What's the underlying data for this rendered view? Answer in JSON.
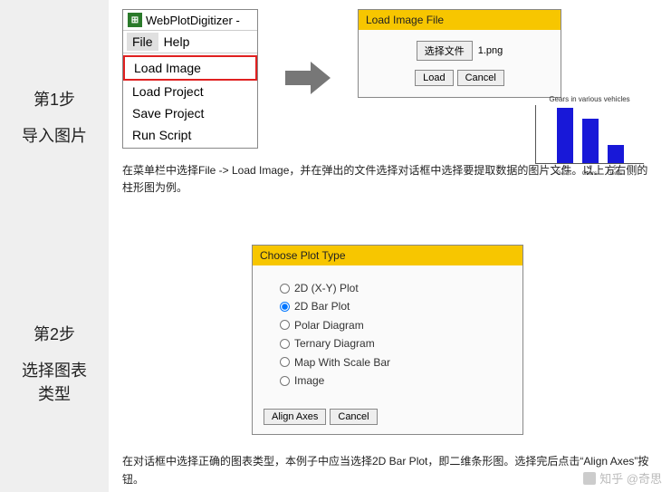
{
  "step1": {
    "num": "第1步",
    "title": "导入图片",
    "window_title": "WebPlotDigitizer -",
    "menu_file": "File",
    "menu_help": "Help",
    "items": [
      "Load Image",
      "Load Project",
      "Save Project",
      "Run Script"
    ],
    "dialog_title": "Load Image File",
    "choose_file_btn": "选择文件",
    "filename": "1.png",
    "load_btn": "Load",
    "cancel_btn": "Cancel",
    "chart": {
      "title": "Gears in various vehicles",
      "labels": [
        "3 Gears",
        "4 Gears",
        "5 Gears"
      ],
      "values": [
        15,
        12,
        5
      ],
      "max": 16,
      "bar_color": "#1818d8"
    },
    "caption": "在菜单栏中选择File -> Load Image，并在弹出的文件选择对话框中选择要提取数据的图片文件。以上方右侧的柱形图为例。"
  },
  "step2": {
    "num": "第2步",
    "title": "选择图表类型",
    "dialog_title": "Choose Plot Type",
    "options": [
      "2D (X-Y) Plot",
      "2D Bar Plot",
      "Polar Diagram",
      "Ternary Diagram",
      "Map With Scale Bar",
      "Image"
    ],
    "selected_index": 1,
    "align_btn": "Align Axes",
    "cancel_btn": "Cancel",
    "caption": "在对话框中选择正确的图表类型，本例子中应当选择2D Bar Plot，即二维条形图。选择完后点击“Align Axes”按钮。"
  },
  "watermark": "知乎 @奇思"
}
